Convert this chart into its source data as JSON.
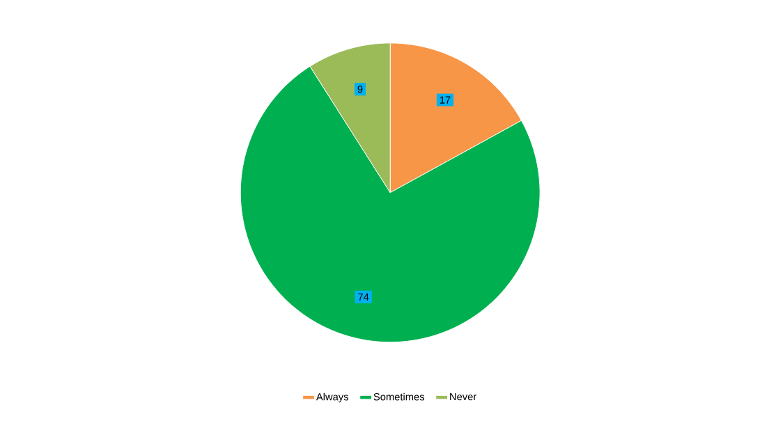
{
  "chart_data": {
    "type": "pie",
    "categories": [
      "Always",
      "Sometimes",
      "Never"
    ],
    "values": [
      17,
      74,
      9
    ],
    "colors": [
      "#f79646",
      "#00b050",
      "#9bbb59"
    ],
    "data_labels": true,
    "legend": "bottom"
  }
}
